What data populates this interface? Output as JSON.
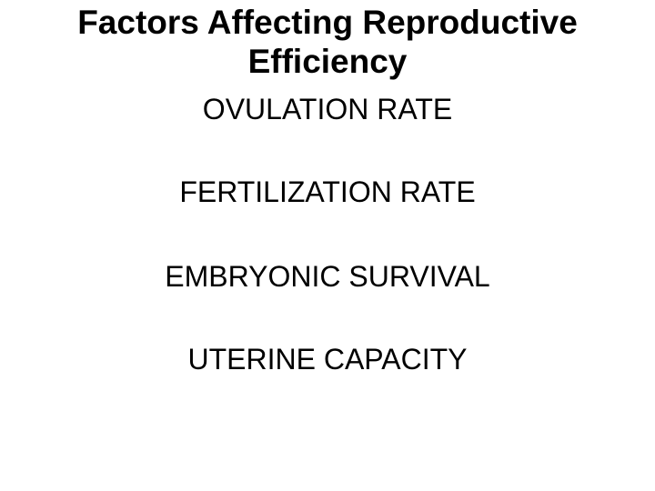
{
  "slide": {
    "colors": {
      "background": "#ffffff",
      "text": "#000000"
    },
    "title_lines": [
      "Factors Affecting Reproductive",
      "Efficiency"
    ],
    "items": [
      "OVULATION RATE",
      "FERTILIZATION RATE",
      "EMBRYONIC SURVIVAL",
      "UTERINE CAPACITY"
    ]
  }
}
